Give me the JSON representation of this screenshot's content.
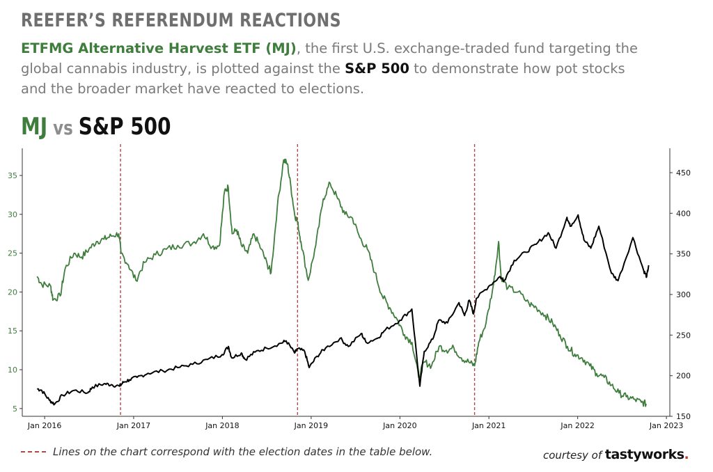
{
  "header": {
    "title": "REEFER’S REFERENDUM REACTIONS",
    "subtitle_mj": "ETFMG Alternative Harvest ETF (MJ)",
    "subtitle_part1": ", the first U.S. exchange-traded fund targeting the global cannabis industry, is plotted against the ",
    "subtitle_sp": "S&P 500",
    "subtitle_part2": " to demonstrate how pot stocks and the broader market have reacted to elections."
  },
  "chart_heading": {
    "mj": "MJ",
    "vs": " vs ",
    "sp": "S&P 500"
  },
  "footer": {
    "note": "Lines on the chart correspond with the election dates in the table below.",
    "credit_prefix": "courtesy of ",
    "credit_brand": "tastyworks",
    "credit_dot": "."
  },
  "colors": {
    "mj": "#3e7d3c",
    "sp": "#000000",
    "election": "#b04848",
    "axis": "#333333"
  },
  "chart_data": {
    "type": "line",
    "x_ticks": [
      "Jan 2016",
      "Jan 2017",
      "Jan 2018",
      "Jan 2019",
      "Jan 2020",
      "Jan 2021",
      "Jan 2022",
      "Jan 2023"
    ],
    "x_range": [
      "2015-10-01",
      "2023-01-15"
    ],
    "y_left": {
      "ticks": [
        5,
        10,
        15,
        20,
        25,
        30,
        35
      ],
      "range": [
        4,
        38.5
      ]
    },
    "y_right": {
      "ticks": [
        150,
        200,
        250,
        300,
        350,
        400,
        450
      ],
      "range": [
        150,
        480
      ]
    },
    "election_dates": [
      "2016-11-08",
      "2018-11-06",
      "2020-11-03"
    ],
    "series": [
      {
        "name": "MJ",
        "axis": "left",
        "points": [
          [
            "2015-12-01",
            22.0
          ],
          [
            "2015-12-20",
            21.0
          ],
          [
            "2016-01-25",
            20.8
          ],
          [
            "2016-02-05",
            19.0
          ],
          [
            "2016-03-05",
            19.5
          ],
          [
            "2016-03-25",
            23.0
          ],
          [
            "2016-05-01",
            25.0
          ],
          [
            "2016-06-01",
            24.5
          ],
          [
            "2016-07-01",
            25.5
          ],
          [
            "2016-08-01",
            26.5
          ],
          [
            "2016-09-01",
            26.8
          ],
          [
            "2016-10-01",
            27.2
          ],
          [
            "2016-11-01",
            27.5
          ],
          [
            "2016-11-10",
            25.0
          ],
          [
            "2016-12-10",
            23.5
          ],
          [
            "2017-01-10",
            21.5
          ],
          [
            "2017-02-15",
            23.8
          ],
          [
            "2017-04-01",
            24.8
          ],
          [
            "2017-05-15",
            25.5
          ],
          [
            "2017-07-01",
            26.0
          ],
          [
            "2017-09-01",
            26.3
          ],
          [
            "2017-10-15",
            27.5
          ],
          [
            "2017-11-20",
            25.8
          ],
          [
            "2017-12-20",
            26.0
          ],
          [
            "2018-01-10",
            33.0
          ],
          [
            "2018-01-25",
            33.5
          ],
          [
            "2018-02-10",
            27.5
          ],
          [
            "2018-03-01",
            28.0
          ],
          [
            "2018-03-20",
            26.0
          ],
          [
            "2018-04-15",
            25.0
          ],
          [
            "2018-05-10",
            27.5
          ],
          [
            "2018-06-10",
            25.5
          ],
          [
            "2018-07-05",
            23.5
          ],
          [
            "2018-07-20",
            22.5
          ],
          [
            "2018-08-15",
            31.0
          ],
          [
            "2018-09-10",
            37.0
          ],
          [
            "2018-09-25",
            36.5
          ],
          [
            "2018-10-10",
            33.5
          ],
          [
            "2018-10-25",
            30.0
          ],
          [
            "2018-11-06",
            29.0
          ],
          [
            "2018-11-20",
            26.5
          ],
          [
            "2018-12-20",
            21.5
          ],
          [
            "2019-01-20",
            26.0
          ],
          [
            "2019-02-20",
            32.0
          ],
          [
            "2019-03-20",
            34.0
          ],
          [
            "2019-04-20",
            32.0
          ],
          [
            "2019-05-20",
            30.0
          ],
          [
            "2019-06-20",
            29.5
          ],
          [
            "2019-07-20",
            27.0
          ],
          [
            "2019-08-20",
            25.5
          ],
          [
            "2019-09-20",
            22.5
          ],
          [
            "2019-10-20",
            19.5
          ],
          [
            "2019-11-20",
            18.0
          ],
          [
            "2019-12-20",
            16.5
          ],
          [
            "2020-01-20",
            14.5
          ],
          [
            "2020-02-20",
            13.5
          ],
          [
            "2020-03-18",
            9.0
          ],
          [
            "2020-04-10",
            11.0
          ],
          [
            "2020-05-10",
            10.5
          ],
          [
            "2020-06-10",
            13.0
          ],
          [
            "2020-07-10",
            12.5
          ],
          [
            "2020-08-10",
            12.8
          ],
          [
            "2020-09-10",
            11.5
          ],
          [
            "2020-10-10",
            11.0
          ],
          [
            "2020-11-03",
            10.5
          ],
          [
            "2020-11-20",
            13.5
          ],
          [
            "2020-12-20",
            16.0
          ],
          [
            "2021-01-20",
            21.0
          ],
          [
            "2021-02-10",
            26.5
          ],
          [
            "2021-02-20",
            22.0
          ],
          [
            "2021-03-20",
            20.5
          ],
          [
            "2021-05-01",
            20.0
          ],
          [
            "2021-06-15",
            18.5
          ],
          [
            "2021-07-15",
            18.0
          ],
          [
            "2021-08-20",
            17.0
          ],
          [
            "2021-09-20",
            16.0
          ],
          [
            "2021-10-20",
            14.5
          ],
          [
            "2021-11-20",
            13.0
          ],
          [
            "2021-12-20",
            12.0
          ],
          [
            "2022-01-20",
            11.5
          ],
          [
            "2022-02-20",
            10.5
          ],
          [
            "2022-03-20",
            9.5
          ],
          [
            "2022-04-20",
            9.0
          ],
          [
            "2022-05-20",
            8.0
          ],
          [
            "2022-06-20",
            7.0
          ],
          [
            "2022-07-20",
            6.5
          ],
          [
            "2022-08-20",
            6.2
          ],
          [
            "2022-09-20",
            5.8
          ],
          [
            "2022-10-10",
            5.6
          ]
        ]
      },
      {
        "name": "S&P 500",
        "axis": "right",
        "points": [
          [
            "2015-12-01",
            184
          ],
          [
            "2015-12-20",
            182
          ],
          [
            "2016-01-20",
            170
          ],
          [
            "2016-02-11",
            165
          ],
          [
            "2016-03-15",
            176
          ],
          [
            "2016-05-01",
            182
          ],
          [
            "2016-06-27",
            179
          ],
          [
            "2016-07-15",
            186
          ],
          [
            "2016-09-01",
            190
          ],
          [
            "2016-10-01",
            189
          ],
          [
            "2016-11-04",
            187
          ],
          [
            "2016-11-20",
            192
          ],
          [
            "2016-12-15",
            195
          ],
          [
            "2017-01-15",
            198
          ],
          [
            "2017-03-01",
            203
          ],
          [
            "2017-05-01",
            206
          ],
          [
            "2017-07-01",
            210
          ],
          [
            "2017-09-01",
            214
          ],
          [
            "2017-11-01",
            220
          ],
          [
            "2017-12-31",
            226
          ],
          [
            "2018-01-26",
            236
          ],
          [
            "2018-02-08",
            222
          ],
          [
            "2018-03-20",
            228
          ],
          [
            "2018-04-05",
            220
          ],
          [
            "2018-05-15",
            229
          ],
          [
            "2018-07-01",
            234
          ],
          [
            "2018-08-30",
            240
          ],
          [
            "2018-09-20",
            243
          ],
          [
            "2018-10-25",
            228
          ],
          [
            "2018-11-06",
            233
          ],
          [
            "2018-12-05",
            230
          ],
          [
            "2018-12-24",
            210
          ],
          [
            "2019-01-25",
            224
          ],
          [
            "2019-03-01",
            234
          ],
          [
            "2019-04-30",
            246
          ],
          [
            "2019-06-03",
            236
          ],
          [
            "2019-07-26",
            252
          ],
          [
            "2019-08-15",
            241
          ],
          [
            "2019-09-30",
            246
          ],
          [
            "2019-11-01",
            256
          ],
          [
            "2019-12-31",
            268
          ],
          [
            "2020-02-19",
            282
          ],
          [
            "2020-03-23",
            187
          ],
          [
            "2020-04-10",
            230
          ],
          [
            "2020-05-15",
            245
          ],
          [
            "2020-06-08",
            268
          ],
          [
            "2020-07-15",
            265
          ],
          [
            "2020-08-31",
            290
          ],
          [
            "2020-09-23",
            274
          ],
          [
            "2020-10-12",
            293
          ],
          [
            "2020-10-30",
            276
          ],
          [
            "2020-11-10",
            295
          ],
          [
            "2020-12-31",
            310
          ],
          [
            "2021-02-15",
            322
          ],
          [
            "2021-03-04",
            317
          ],
          [
            "2021-04-15",
            342
          ],
          [
            "2021-06-01",
            352
          ],
          [
            "2021-07-15",
            362
          ],
          [
            "2021-09-02",
            376
          ],
          [
            "2021-10-04",
            357
          ],
          [
            "2021-11-18",
            395
          ],
          [
            "2021-12-01",
            384
          ],
          [
            "2022-01-03",
            398
          ],
          [
            "2022-01-27",
            367
          ],
          [
            "2022-02-24",
            357
          ],
          [
            "2022-03-29",
            384
          ],
          [
            "2022-05-20",
            326
          ],
          [
            "2022-06-16",
            317
          ],
          [
            "2022-08-16",
            370
          ],
          [
            "2022-09-30",
            329
          ],
          [
            "2022-10-12",
            322
          ],
          [
            "2022-10-20",
            336
          ]
        ]
      }
    ]
  }
}
